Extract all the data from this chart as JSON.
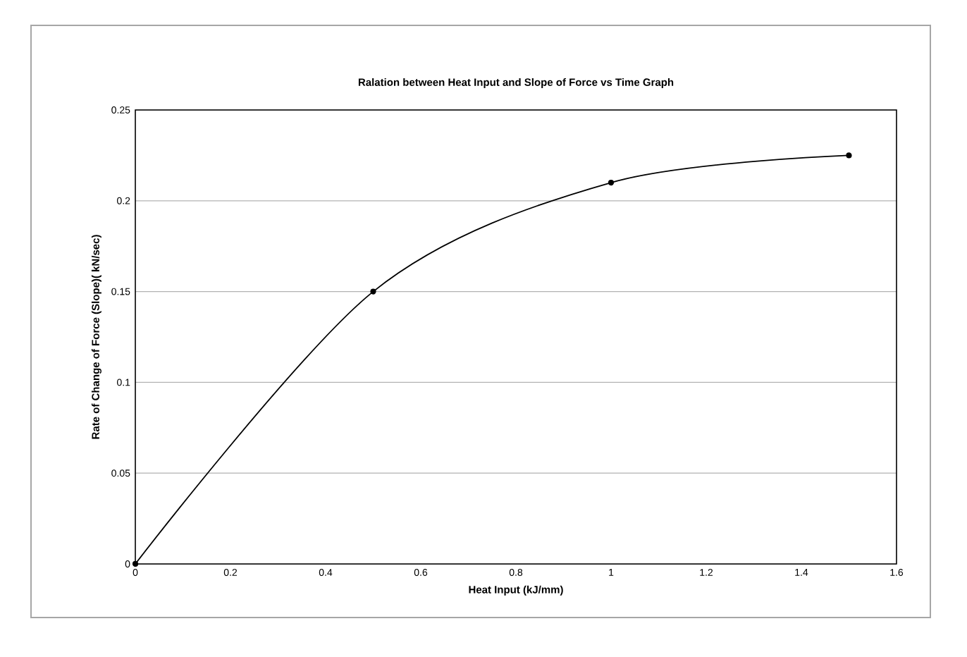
{
  "chart_data": {
    "type": "line",
    "title": "Ralation between Heat Input and Slope of Force vs Time Graph",
    "xlabel": "Heat Input (kJ/mm)",
    "ylabel": "Rate of Change of Force (Slope)( kN/sec)",
    "x": [
      0,
      0.5,
      1,
      1.5
    ],
    "series": [
      {
        "color": "#000000",
        "values": [
          0,
          0.15,
          0.21,
          0.225
        ]
      }
    ],
    "xlim": [
      0,
      1.6
    ],
    "xticks": [
      0,
      0.2,
      0.4,
      0.6,
      0.8,
      1,
      1.2,
      1.4,
      1.6
    ],
    "ylim": [
      0,
      0.25
    ],
    "yticks": [
      0,
      0.05,
      0.1,
      0.15,
      0.2,
      0.25
    ],
    "grid": "y",
    "marker": "circle",
    "line_style": "solid"
  }
}
